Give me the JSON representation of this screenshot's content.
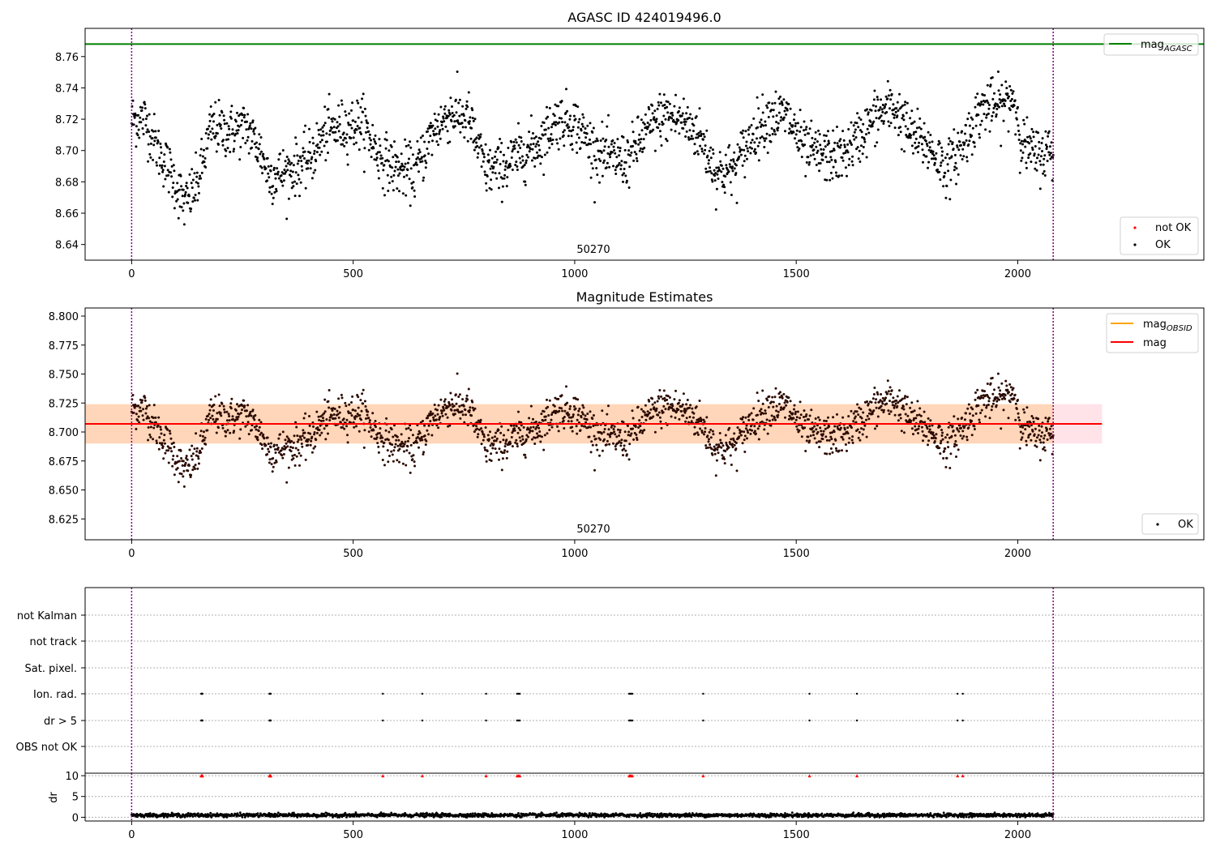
{
  "figure": {
    "title": "AGASC ID 424019496.0",
    "obsid_label": "50270",
    "xticks": [
      0,
      500,
      1000,
      1500,
      2000
    ],
    "xlim": [
      -105,
      2420
    ],
    "obs_boundaries": [
      0,
      2080
    ]
  },
  "panels": {
    "top": {
      "title": "AGASC ID 424019496.0",
      "ylim": [
        8.63,
        8.778
      ],
      "yticks": [
        8.64,
        8.66,
        8.68,
        8.7,
        8.72,
        8.74,
        8.76
      ],
      "legend_line": {
        "label": "mag",
        "sub": "AGASC",
        "color": "#008000"
      },
      "legend_points": [
        {
          "label": "not OK",
          "color": "#ff0000"
        },
        {
          "label": "OK",
          "color": "#000000"
        }
      ]
    },
    "middle": {
      "title": "Magnitude Estimates",
      "ylim": [
        8.607,
        8.807
      ],
      "yticks": [
        8.625,
        8.65,
        8.675,
        8.7,
        8.725,
        8.75,
        8.775,
        8.8
      ],
      "legend_lines": [
        {
          "label": "mag",
          "sub": "OBSID",
          "color": "#ffa500"
        },
        {
          "label": "mag",
          "sub": "",
          "color": "#ff0000"
        }
      ],
      "legend_points": [
        {
          "label": "OK",
          "color": "#000000"
        }
      ]
    },
    "flags": {
      "labels": [
        "not Kalman",
        "not track",
        "Sat. pixel.",
        "Ion. rad.",
        "dr > 5",
        "OBS not OK"
      ]
    },
    "dr": {
      "ylabel": "dr",
      "ylim": [
        -0.9,
        10.6
      ],
      "yticks": [
        0,
        5,
        10
      ]
    }
  },
  "chart_data": [
    {
      "type": "scatter",
      "title": "AGASC ID 424019496.0",
      "annotation": "50270",
      "xlim": [
        -105,
        2420
      ],
      "ylim": [
        8.63,
        8.778
      ],
      "mag_agasc": 8.768,
      "series": [
        {
          "name": "not OK",
          "color": "#ff0000",
          "values": []
        },
        {
          "name": "OK",
          "color": "#000000",
          "x_range": [
            0,
            2080
          ],
          "n_points": 2081,
          "approx_trend": {
            "x": [
              0,
              30,
              60,
              90,
              120,
              150,
              180,
              220,
              260,
              290,
              310,
              350,
              400,
              440,
              480,
              520,
              560,
              600,
              640,
              680,
              720,
              760,
              800,
              840,
              880,
              920,
              960,
              1000,
              1040,
              1080,
              1120,
              1160,
              1200,
              1240,
              1280,
              1320,
              1360,
              1400,
              1440,
              1480,
              1520,
              1560,
              1600,
              1640,
              1680,
              1720,
              1760,
              1800,
              1840,
              1880,
              1920,
              1960,
              1990,
              2010,
              2040,
              2080
            ],
            "y": [
              8.72,
              8.72,
              8.7,
              8.685,
              8.665,
              8.68,
              8.715,
              8.712,
              8.715,
              8.7,
              8.684,
              8.686,
              8.694,
              8.712,
              8.715,
              8.718,
              8.696,
              8.688,
              8.686,
              8.712,
              8.724,
              8.72,
              8.687,
              8.69,
              8.698,
              8.705,
              8.72,
              8.718,
              8.702,
              8.695,
              8.694,
              8.712,
              8.722,
              8.72,
              8.71,
              8.686,
              8.688,
              8.71,
              8.722,
              8.722,
              8.7,
              8.697,
              8.696,
              8.708,
              8.722,
              8.728,
              8.71,
              8.702,
              8.688,
              8.706,
              8.728,
              8.728,
              8.735,
              8.705,
              8.697,
              8.7
            ]
          }
        }
      ]
    },
    {
      "type": "scatter",
      "title": "Magnitude Estimates",
      "annotation": "50270",
      "xlim": [
        -105,
        2420
      ],
      "ylim": [
        8.607,
        8.807
      ],
      "mag": 8.707,
      "mag_obsid": 8.707,
      "band": [
        8.69,
        8.724
      ],
      "band_x": [
        -105,
        2190
      ],
      "series": [
        {
          "name": "OK",
          "color": "#000000",
          "x_range": [
            0,
            2080
          ]
        }
      ]
    },
    {
      "type": "scatter",
      "rows": [
        "not Kalman",
        "not track",
        "Sat. pixel.",
        "Ion. rad.",
        "dr > 5",
        "OBS not OK"
      ],
      "flag_x": {
        "Ion. rad.": [
          157,
          158,
          159,
          160,
          311,
          312,
          313,
          314,
          567,
          656,
          800,
          870,
          873,
          876,
          1123,
          1125,
          1127,
          1130,
          1290,
          1530,
          1637,
          1864,
          1876
        ],
        "dr > 5": [
          157,
          158,
          159,
          160,
          311,
          312,
          313,
          314,
          567,
          656,
          800,
          870,
          873,
          876,
          1123,
          1125,
          1127,
          1130,
          1290,
          1530,
          1637,
          1864,
          1876
        ]
      }
    },
    {
      "type": "scatter",
      "ylabel": "dr",
      "xlim": [
        -105,
        2420
      ],
      "ylim": [
        -0.9,
        10.6
      ],
      "yticks": [
        0,
        5,
        10
      ],
      "outliers_clipped_at": 10,
      "outlier_x": [
        157,
        158,
        159,
        160,
        311,
        312,
        313,
        314,
        567,
        656,
        800,
        870,
        873,
        876,
        1123,
        1125,
        1127,
        1130,
        1290,
        1530,
        1637,
        1864,
        1876
      ],
      "typical_dr": 0.5
    }
  ]
}
